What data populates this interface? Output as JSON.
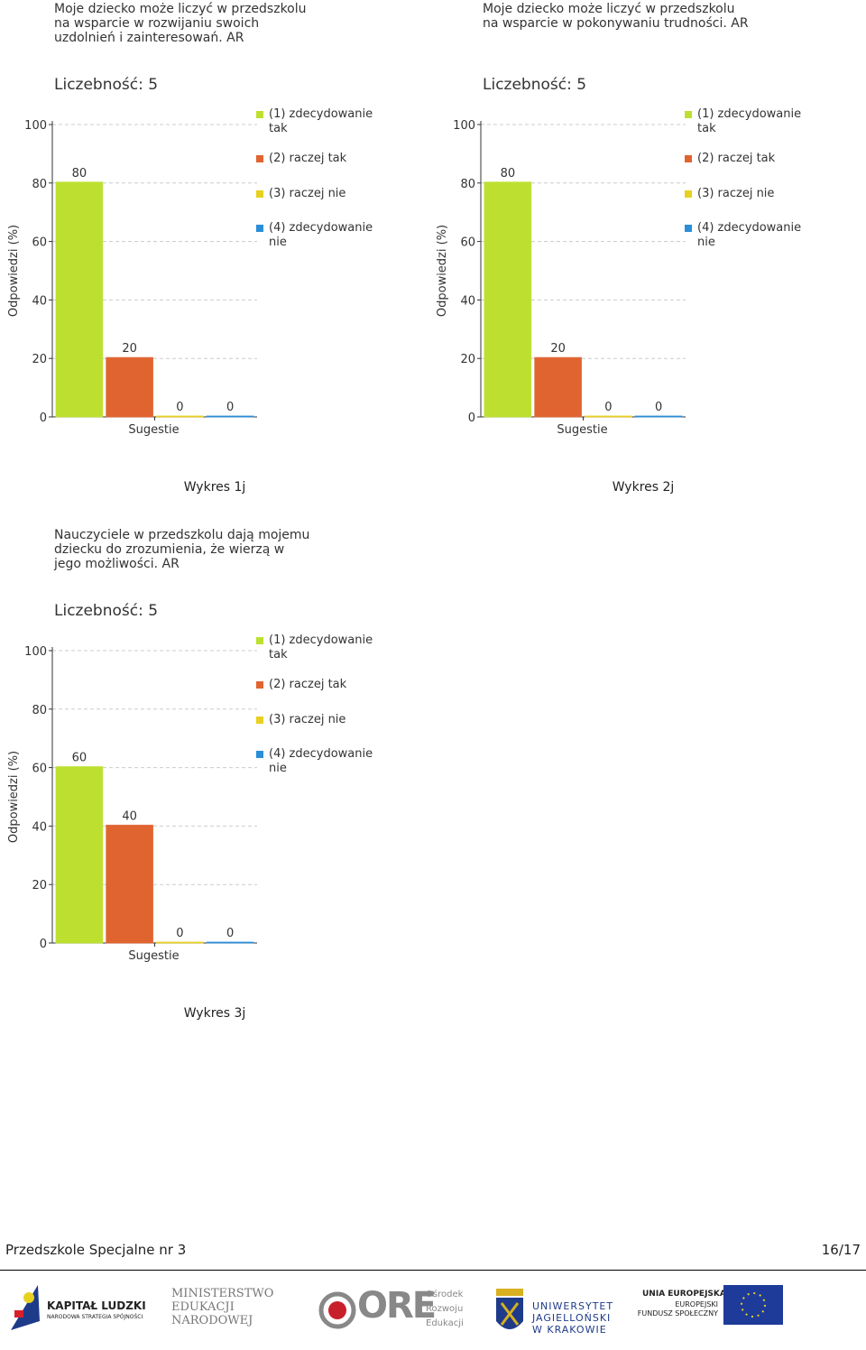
{
  "chart_data": [
    {
      "type": "bar",
      "title": [
        "Moje dziecko może liczyć w przedszkolu",
        "na wsparcie w rozwijaniu swoich",
        "uzdolnień i zainteresowań. AR"
      ],
      "subtitle": "Liczebność: 5",
      "xlabel": "Sugestie",
      "ylabel": "Odpowiedzi (%)",
      "series": [
        {
          "name": "(1) zdecydowanie tak",
          "color": "#bde030",
          "values": [
            80
          ]
        },
        {
          "name": "(2) raczej tak",
          "color": "#e06430",
          "values": [
            20
          ]
        },
        {
          "name": "(3) raczej nie",
          "color": "#e8d020",
          "values": [
            0
          ]
        },
        {
          "name": "(4) zdecydowanie nie",
          "color": "#2a8ed8",
          "values": [
            0
          ]
        }
      ],
      "ylim": [
        0,
        100
      ],
      "yticks": [
        0,
        20,
        40,
        60,
        80,
        100
      ],
      "grid": true,
      "caption": "Wykres 1j"
    },
    {
      "type": "bar",
      "title": [
        "Moje dziecko może liczyć w przedszkolu",
        "na wsparcie w pokonywaniu trudności. AR"
      ],
      "subtitle": "Liczebność: 5",
      "xlabel": "Sugestie",
      "ylabel": "Odpowiedzi (%)",
      "series": [
        {
          "name": "(1) zdecydowanie tak",
          "color": "#bde030",
          "values": [
            80
          ]
        },
        {
          "name": "(2) raczej tak",
          "color": "#e06430",
          "values": [
            20
          ]
        },
        {
          "name": "(3) raczej nie",
          "color": "#e8d020",
          "values": [
            0
          ]
        },
        {
          "name": "(4) zdecydowanie nie",
          "color": "#2a8ed8",
          "values": [
            0
          ]
        }
      ],
      "ylim": [
        0,
        100
      ],
      "yticks": [
        0,
        20,
        40,
        60,
        80,
        100
      ],
      "grid": true,
      "caption": "Wykres 2j"
    },
    {
      "type": "bar",
      "title": [
        "Nauczyciele w przedszkolu dają mojemu",
        "dziecku do  zrozumienia, że wierzą w",
        "jego możliwości. AR"
      ],
      "subtitle": "Liczebność: 5",
      "xlabel": "Sugestie",
      "ylabel": "Odpowiedzi (%)",
      "series": [
        {
          "name": "(1) zdecydowanie tak",
          "color": "#bde030",
          "values": [
            60
          ]
        },
        {
          "name": "(2) raczej tak",
          "color": "#e06430",
          "values": [
            40
          ]
        },
        {
          "name": "(3) raczej nie",
          "color": "#e8d020",
          "values": [
            0
          ]
        },
        {
          "name": "(4) zdecydowanie nie",
          "color": "#2a8ed8",
          "values": [
            0
          ]
        }
      ],
      "ylim": [
        0,
        100
      ],
      "yticks": [
        0,
        20,
        40,
        60,
        80,
        100
      ],
      "grid": true,
      "caption": "Wykres 3j"
    }
  ],
  "footer": {
    "school": "Przedszkole Specjalne nr 3",
    "page": "16/17"
  },
  "logos": {
    "kl": [
      "KAPITAŁ LUDZKI",
      "NARODOWA STRATEGIA SPÓJNOŚCI"
    ],
    "men": [
      "MINISTERSTWO",
      "EDUKACJI",
      "NARODOWEJ"
    ],
    "ore": [
      "ORE",
      "Ośrodek",
      "Rozwoju",
      "Edukacji"
    ],
    "uj": [
      "UNIWERSYTET",
      "JAGIELLOŃSKI",
      "W KRAKOWIE"
    ],
    "ue": [
      "UNIA EUROPEJSKA",
      "EUROPEJSKI",
      "FUNDUSZ SPOŁECZNY"
    ]
  }
}
